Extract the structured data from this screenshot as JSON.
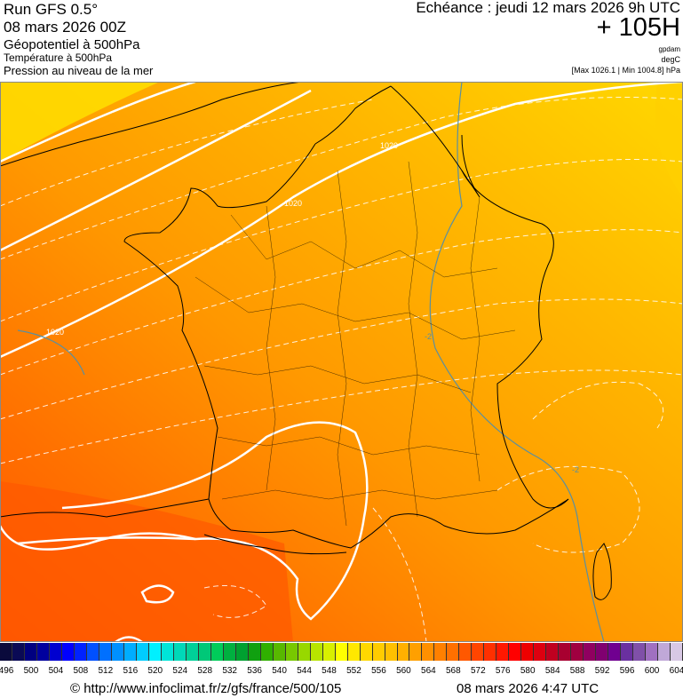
{
  "header": {
    "run": "Run GFS 0.5°",
    "run_date": "08 mars 2026 00Z",
    "field_main": "Géopotentiel à 500hPa",
    "field_2": "Température à 500hPa",
    "field_3": "Pression au niveau de la mer",
    "echeance": "Echéance : jeudi 12 mars 2026 9h UTC",
    "lead": "+ 105H",
    "unit_1": "gpdam",
    "unit_2": "degC",
    "minmax": "[Max 1026.1 | Min 1004.8] hPa"
  },
  "map": {
    "contour_labels": [
      "1020",
      "1020",
      "1020"
    ],
    "isotherm_labels": [
      "-2",
      "-2"
    ]
  },
  "legend": {
    "values": [
      496,
      498,
      500,
      502,
      504,
      506,
      508,
      510,
      512,
      514,
      516,
      518,
      520,
      522,
      524,
      526,
      528,
      530,
      532,
      534,
      536,
      538,
      540,
      542,
      544,
      546,
      548,
      550,
      552,
      554,
      556,
      558,
      560,
      562,
      564,
      566,
      568,
      570,
      572,
      574,
      576,
      578,
      580,
      582,
      584,
      586,
      588,
      590,
      592,
      594,
      596,
      598,
      600,
      602,
      604
    ],
    "tick_labels": [
      "496",
      "500",
      "504",
      "508",
      "512",
      "516",
      "520",
      "524",
      "528",
      "532",
      "536",
      "540",
      "544",
      "548",
      "552",
      "556",
      "560",
      "564",
      "568",
      "572",
      "576",
      "580",
      "584",
      "588",
      "592",
      "596",
      "600",
      "604"
    ],
    "colors": [
      "#0a0a3c",
      "#0a0a55",
      "#000080",
      "#00009e",
      "#0000d0",
      "#0000ff",
      "#0022ff",
      "#0050ff",
      "#0070ff",
      "#0090ff",
      "#00adff",
      "#00ccff",
      "#00f0ff",
      "#00e4d8",
      "#00d8b8",
      "#00d098",
      "#00c878",
      "#00cc5a",
      "#00b040",
      "#00a030",
      "#10a010",
      "#30b000",
      "#58b800",
      "#78c800",
      "#98d800",
      "#b8e400",
      "#d8f000",
      "#ffff00",
      "#ffe800",
      "#ffd800",
      "#ffcc00",
      "#ffc000",
      "#ffb000",
      "#ffa000",
      "#ff9000",
      "#ff8000",
      "#ff7000",
      "#ff5800",
      "#ff4500",
      "#ff3000",
      "#ff1800",
      "#ff0000",
      "#ee0000",
      "#dd0010",
      "#c00020",
      "#a80030",
      "#a00040",
      "#900060",
      "#800070",
      "#700090",
      "#6a30a0",
      "#8050a8",
      "#a070c0",
      "#c0a8d8",
      "#d8c8e4"
    ]
  },
  "footer": {
    "url": "© http://www.infoclimat.fr/z/gfs/france/500/105",
    "timestamp": "08 mars 2026  4:47 UTC"
  }
}
